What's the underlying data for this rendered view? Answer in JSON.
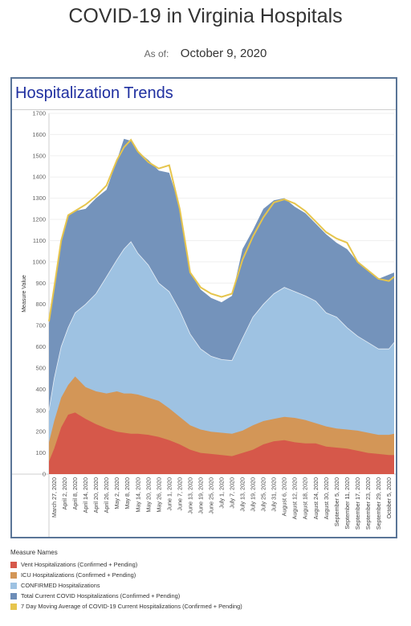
{
  "header": {
    "title": "COVID-19 in Virginia Hospitals",
    "as_of_label": "As of:",
    "as_of_value": "October 9, 2020"
  },
  "card": {
    "title": "Hospitalization Trends"
  },
  "colors": {
    "vent": "#d6584a",
    "icu": "#d39657",
    "confirmed": "#9ec2e2",
    "total": "#6d8db7",
    "avg": "#e6c54d",
    "title": "#1f2fa0",
    "border": "#5a7597"
  },
  "legend": {
    "title": "Measure Names",
    "items": [
      {
        "label": "Vent Hospitalizations (Confirmed + Pending)",
        "color": "#d6584a"
      },
      {
        "label": "ICU Hospitalizations (Confirmed + Pending)",
        "color": "#d39657"
      },
      {
        "label": "CONFIRMED Hospitalizations",
        "color": "#9ec2e2"
      },
      {
        "label": "Total Current COVID Hospitalizations (Confirmed + Pending)",
        "color": "#6d8db7"
      },
      {
        "label": "7 Day Moving Average of COVID-19 Current Hospitalizations (Confirmed + Pending)",
        "color": "#e6c54d"
      }
    ]
  },
  "chart_data": {
    "type": "area",
    "ylabel": "Measure Value",
    "ylim": [
      0,
      1700
    ],
    "yticks": [
      0,
      100,
      200,
      300,
      400,
      500,
      600,
      700,
      800,
      900,
      1000,
      1100,
      1200,
      1300,
      1400,
      1500,
      1600,
      1700
    ],
    "xlim": [
      "2020-03-24",
      "2020-10-08"
    ],
    "xticks": [
      "March 27, 2020",
      "April 2, 2020",
      "April 8, 2020",
      "April 14, 2020",
      "April 20, 2020",
      "April 26, 2020",
      "May 2, 2020",
      "May 8, 2020",
      "May 14, 2020",
      "May 20, 2020",
      "May 26, 2020",
      "June 1, 2020",
      "June 7, 2020",
      "June 13, 2020",
      "June 19, 2020",
      "June 25, 2020",
      "July 1, 2020",
      "July 7, 2020",
      "July 13, 2020",
      "July 19, 2020",
      "July 25, 2020",
      "July 31, 2020",
      "August 6, 2020",
      "August 12, 2020",
      "August 18, 2020",
      "August 24, 2020",
      "August 30, 2020",
      "September 5, 2020",
      "September 11, 2020",
      "September 17, 2020",
      "September 23, 2020",
      "September 29, 2020",
      "October 5, 2020"
    ],
    "grid": true,
    "legend": "bottom",
    "x": [
      "2020-03-24",
      "2020-03-27",
      "2020-03-31",
      "2020-04-04",
      "2020-04-08",
      "2020-04-14",
      "2020-04-20",
      "2020-04-26",
      "2020-05-02",
      "2020-05-06",
      "2020-05-10",
      "2020-05-14",
      "2020-05-20",
      "2020-05-26",
      "2020-06-01",
      "2020-06-07",
      "2020-06-13",
      "2020-06-19",
      "2020-06-25",
      "2020-07-01",
      "2020-07-07",
      "2020-07-13",
      "2020-07-19",
      "2020-07-25",
      "2020-07-31",
      "2020-08-06",
      "2020-08-12",
      "2020-08-18",
      "2020-08-24",
      "2020-08-30",
      "2020-09-05",
      "2020-09-11",
      "2020-09-17",
      "2020-09-23",
      "2020-09-29",
      "2020-10-05",
      "2020-10-08"
    ],
    "series": [
      {
        "name": "Vent Hospitalizations (Confirmed + Pending)",
        "values": [
          60,
          120,
          220,
          280,
          290,
          260,
          235,
          215,
          200,
          195,
          190,
          190,
          185,
          175,
          160,
          140,
          115,
          100,
          95,
          90,
          85,
          100,
          115,
          140,
          155,
          160,
          150,
          145,
          145,
          130,
          125,
          120,
          110,
          100,
          95,
          90,
          90
        ]
      },
      {
        "name": "ICU Hospitalizations (Confirmed + Pending)",
        "values": [
          150,
          250,
          360,
          420,
          460,
          410,
          390,
          380,
          390,
          380,
          380,
          375,
          360,
          345,
          310,
          270,
          230,
          210,
          200,
          195,
          190,
          205,
          230,
          250,
          260,
          270,
          265,
          255,
          240,
          225,
          215,
          210,
          205,
          195,
          185,
          185,
          190
        ]
      },
      {
        "name": "CONFIRMED Hospitalizations",
        "values": [
          300,
          450,
          600,
          690,
          760,
          800,
          850,
          930,
          1010,
          1060,
          1095,
          1040,
          985,
          900,
          860,
          770,
          660,
          590,
          555,
          540,
          535,
          640,
          740,
          800,
          850,
          880,
          860,
          840,
          815,
          760,
          740,
          690,
          650,
          620,
          590,
          590,
          620
        ]
      },
      {
        "name": "Total Current COVID Hospitalizations (Confirmed + Pending)",
        "values": [
          710,
          880,
          1100,
          1220,
          1240,
          1250,
          1300,
          1340,
          1480,
          1580,
          1570,
          1520,
          1480,
          1430,
          1420,
          1260,
          950,
          870,
          830,
          810,
          840,
          1060,
          1150,
          1250,
          1290,
          1300,
          1260,
          1230,
          1180,
          1130,
          1090,
          1060,
          1000,
          960,
          920,
          940,
          950
        ]
      },
      {
        "name": "7 Day Moving Average of COVID-19 Current Hospitalizations (Confirmed + Pending)",
        "values": [
          720,
          880,
          1100,
          1220,
          1240,
          1270,
          1310,
          1360,
          1480,
          1540,
          1575,
          1520,
          1470,
          1440,
          1455,
          1250,
          950,
          880,
          850,
          835,
          850,
          1010,
          1120,
          1210,
          1280,
          1295,
          1275,
          1240,
          1190,
          1140,
          1110,
          1090,
          1000,
          960,
          920,
          910,
          930
        ]
      }
    ]
  }
}
